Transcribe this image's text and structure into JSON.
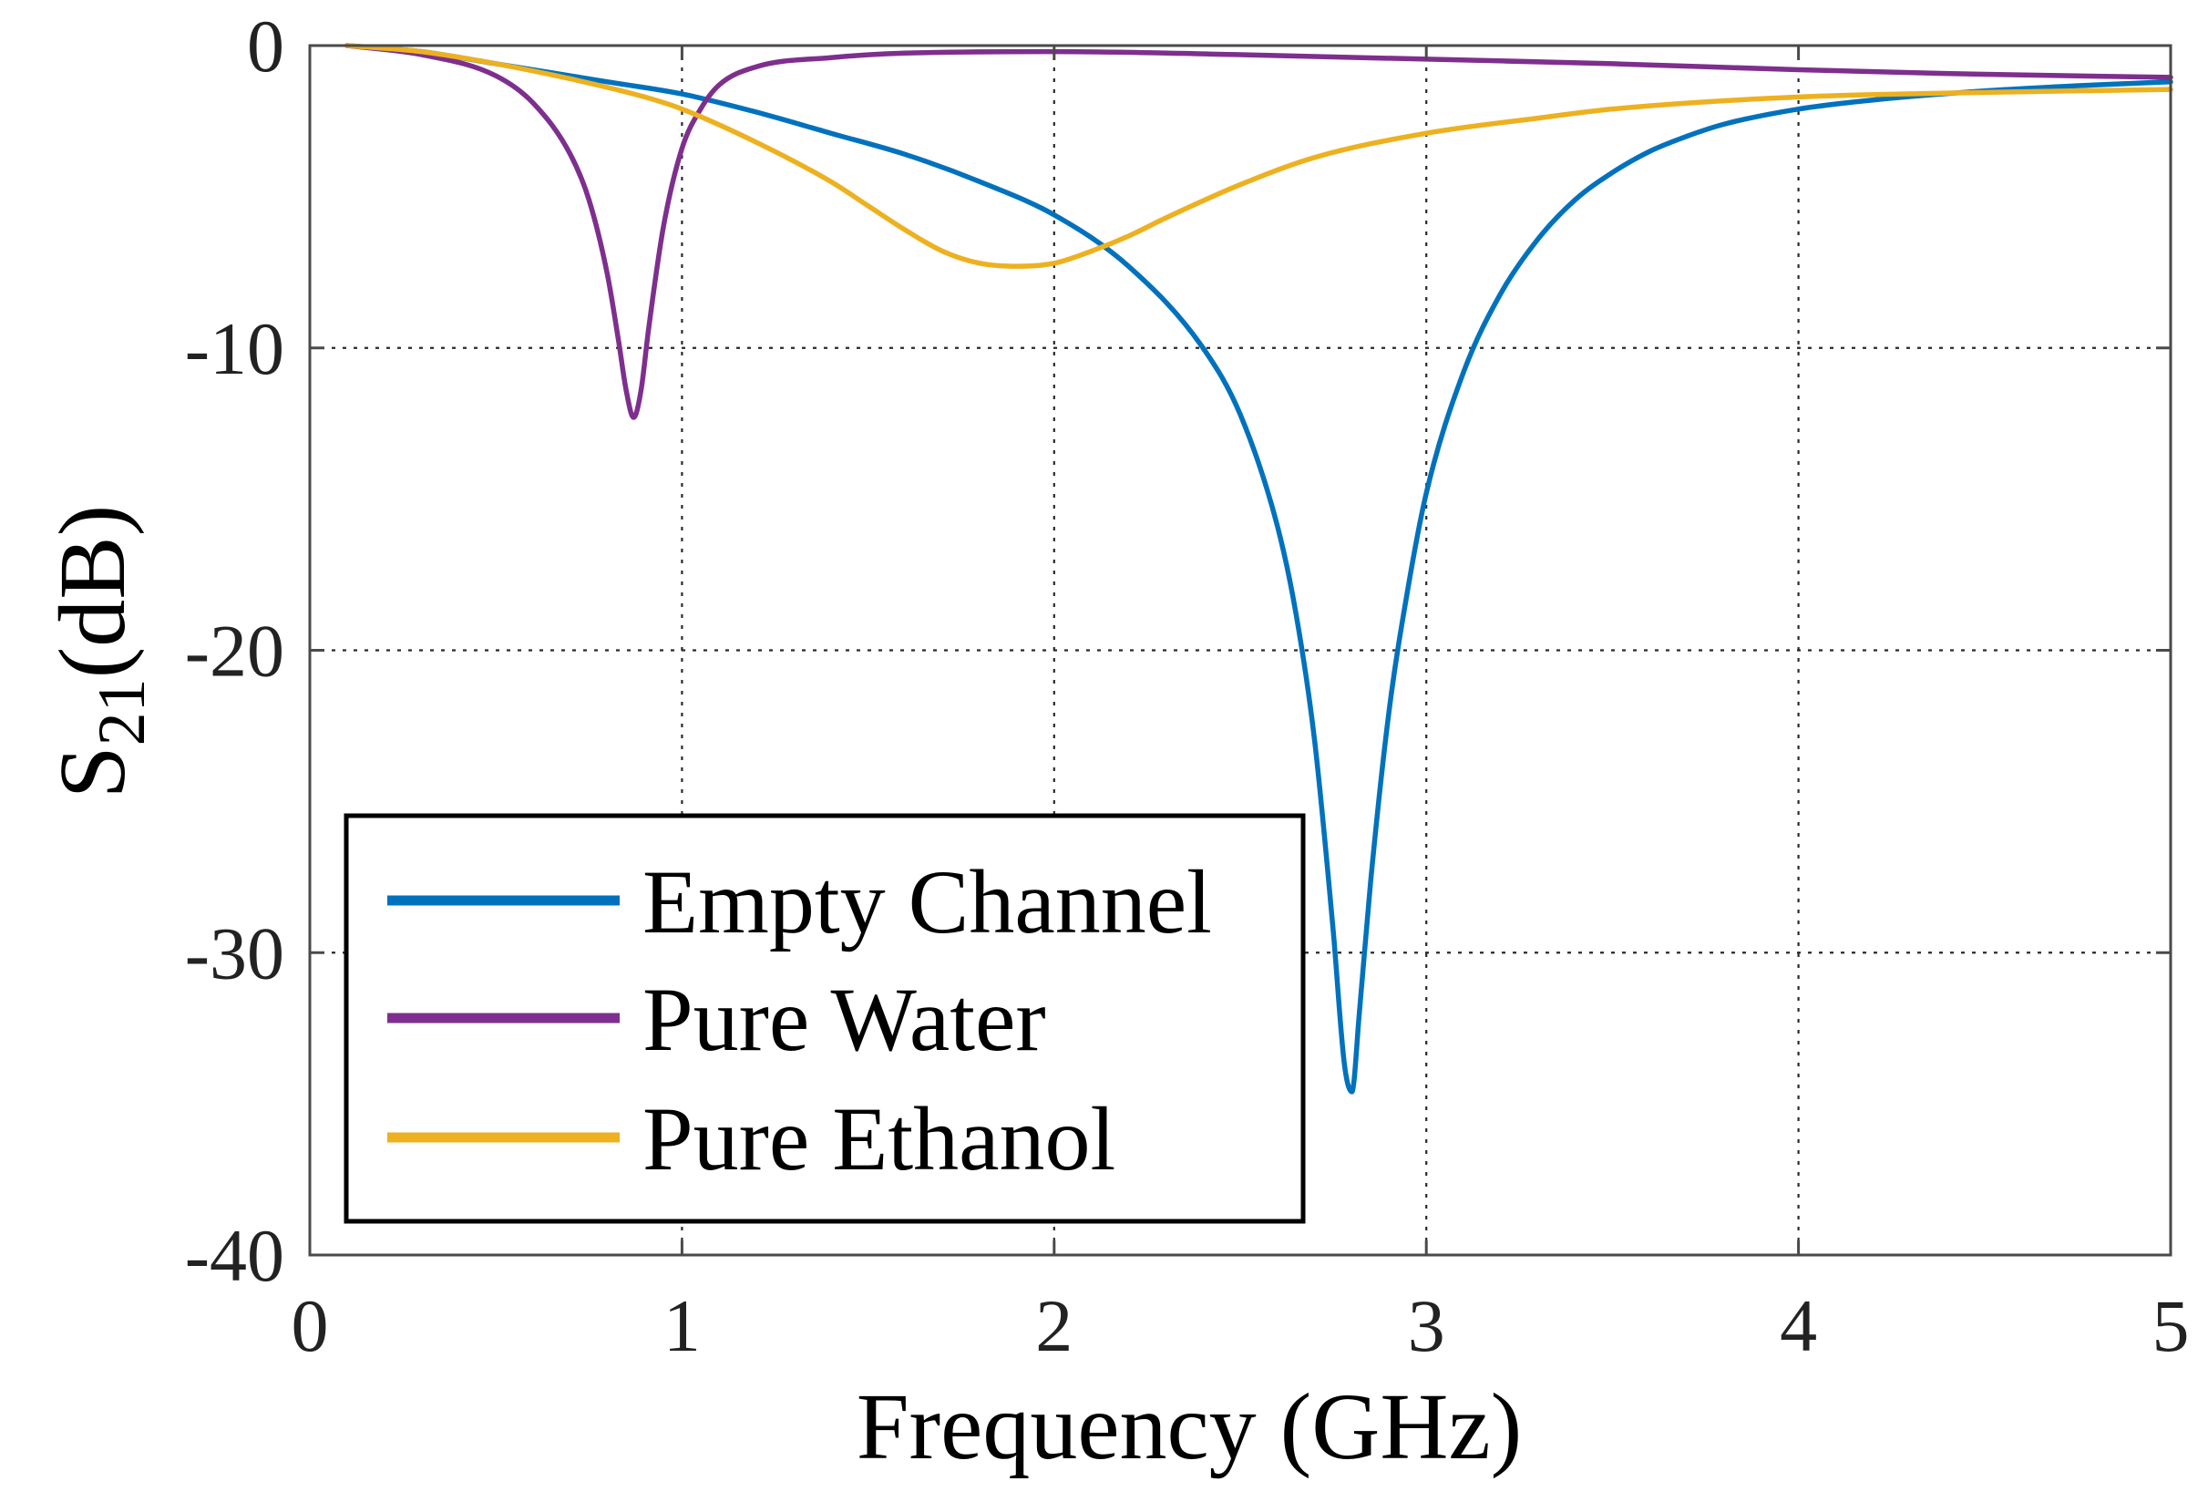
{
  "chart_data": {
    "type": "line",
    "title": "",
    "xlabel": "Frequency (GHz)",
    "ylabel_main": "S",
    "ylabel_sub": "21",
    "ylabel_rest": "(dB)",
    "xlim": [
      0,
      5
    ],
    "ylim": [
      -40,
      0
    ],
    "xticks": [
      0,
      1,
      2,
      3,
      4,
      5
    ],
    "xtick_labels": [
      "0",
      "1",
      "2",
      "3",
      "4",
      "5"
    ],
    "yticks": [
      0,
      -10,
      -20,
      -30,
      -40
    ],
    "ytick_labels": [
      "0",
      "-10",
      "-20",
      "-30",
      "-40"
    ],
    "grid": true,
    "legend_position": "lower-left",
    "series": [
      {
        "name": "Empty Channel",
        "color": "#0072BD",
        "x": [
          0.1,
          0.3,
          0.5,
          0.8,
          1.0,
          1.2,
          1.4,
          1.6,
          1.8,
          2.0,
          2.2,
          2.4,
          2.5,
          2.6,
          2.65,
          2.7,
          2.75,
          2.78,
          2.8,
          2.82,
          2.85,
          2.9,
          2.95,
          3.0,
          3.1,
          3.2,
          3.3,
          3.4,
          3.5,
          3.6,
          3.7,
          3.8,
          4.0,
          4.2,
          4.5,
          4.8,
          5.0
        ],
        "y": [
          0,
          -0.2,
          -0.6,
          -1.2,
          -1.6,
          -2.2,
          -2.9,
          -3.6,
          -4.5,
          -5.6,
          -7.3,
          -10.0,
          -12.2,
          -15.9,
          -18.8,
          -23.0,
          -29.3,
          -33.7,
          -34.6,
          -32.0,
          -27.7,
          -22.0,
          -18.0,
          -14.8,
          -10.8,
          -8.2,
          -6.4,
          -5.1,
          -4.2,
          -3.5,
          -3.0,
          -2.6,
          -2.1,
          -1.8,
          -1.5,
          -1.3,
          -1.2
        ]
      },
      {
        "name": "Pure Water",
        "color": "#7E2F8E",
        "x": [
          0.1,
          0.3,
          0.5,
          0.6,
          0.7,
          0.75,
          0.8,
          0.83,
          0.85,
          0.87,
          0.89,
          0.91,
          0.95,
          1.0,
          1.05,
          1.1,
          1.2,
          1.4,
          1.6,
          2.0,
          2.5,
          3.0,
          3.5,
          4.0,
          4.5,
          5.0
        ],
        "y": [
          0,
          -0.3,
          -1.0,
          -1.9,
          -3.6,
          -5.1,
          -7.6,
          -9.8,
          -11.4,
          -12.3,
          -11.4,
          -9.4,
          -6.0,
          -3.4,
          -2.1,
          -1.3,
          -0.7,
          -0.4,
          -0.25,
          -0.2,
          -0.3,
          -0.45,
          -0.6,
          -0.8,
          -0.95,
          -1.05
        ]
      },
      {
        "name": "Pure Ethanol",
        "color": "#EDB120",
        "x": [
          0.1,
          0.3,
          0.5,
          0.7,
          0.9,
          1.0,
          1.2,
          1.4,
          1.5,
          1.6,
          1.7,
          1.8,
          1.9,
          2.0,
          2.1,
          2.2,
          2.3,
          2.5,
          2.7,
          3.0,
          3.3,
          3.5,
          4.0,
          4.5,
          5.0
        ],
        "y": [
          0,
          -0.2,
          -0.6,
          -1.1,
          -1.7,
          -2.1,
          -3.2,
          -4.5,
          -5.3,
          -6.1,
          -6.8,
          -7.2,
          -7.3,
          -7.2,
          -6.8,
          -6.3,
          -5.7,
          -4.6,
          -3.7,
          -2.9,
          -2.4,
          -2.1,
          -1.7,
          -1.55,
          -1.45
        ]
      }
    ]
  }
}
